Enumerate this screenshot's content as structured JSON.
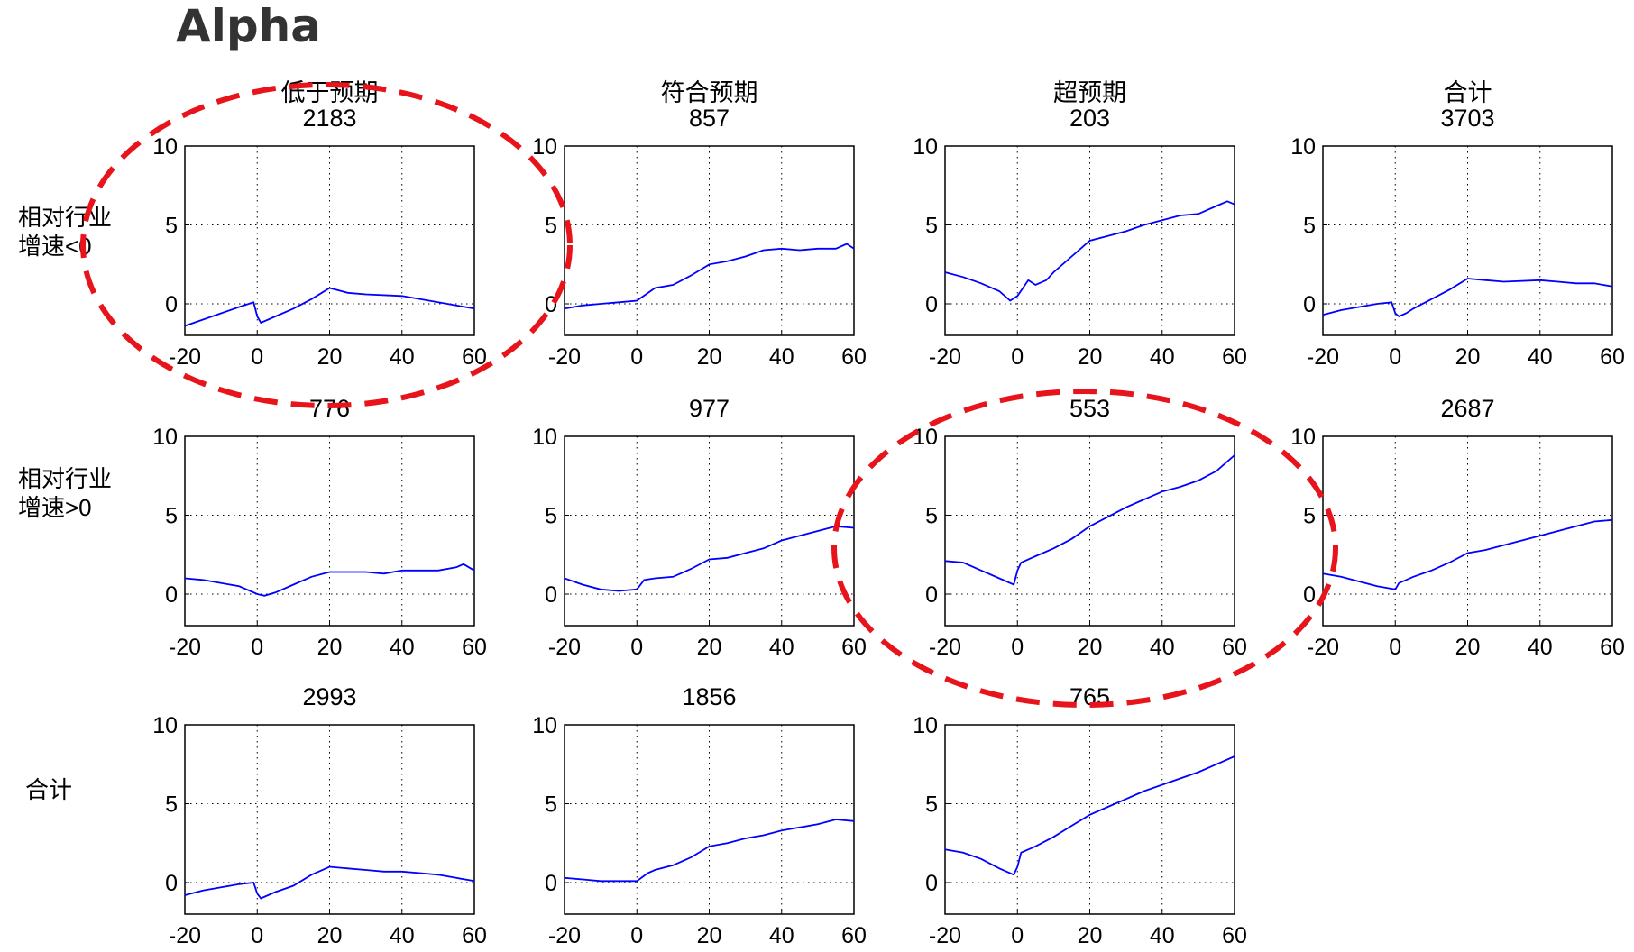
{
  "page_title": "Alpha",
  "row_labels": [
    [
      "相对行业",
      "增速<0"
    ],
    [
      "相对行业",
      "增速>0"
    ],
    [
      "合计"
    ]
  ],
  "colors": {
    "line": "#0000ff",
    "highlight": "#e8141c",
    "axis": "#000000",
    "grid": "#000000"
  },
  "chart_data": [
    {
      "type": "line",
      "title": "低于预期",
      "count": "2183",
      "xlim": [
        -20,
        60
      ],
      "ylim": [
        -2,
        10
      ],
      "xticks": [
        -20,
        0,
        20,
        40,
        60
      ],
      "yticks": [
        0,
        5,
        10
      ],
      "grid": true,
      "series": [
        {
          "x": [
            -20,
            -15,
            -10,
            -5,
            -1,
            0,
            1,
            3,
            5,
            10,
            15,
            20,
            25,
            30,
            40,
            45,
            50,
            55,
            60
          ],
          "y": [
            -1.4,
            -1.0,
            -0.6,
            -0.2,
            0.1,
            -0.8,
            -1.2,
            -1.0,
            -0.8,
            -0.3,
            0.3,
            1.0,
            0.7,
            0.6,
            0.5,
            0.3,
            0.1,
            -0.1,
            -0.3
          ]
        }
      ]
    },
    {
      "type": "line",
      "title": "符合预期",
      "count": "857",
      "xlim": [
        -20,
        60
      ],
      "ylim": [
        -2,
        10
      ],
      "xticks": [
        -20,
        0,
        20,
        40,
        60
      ],
      "yticks": [
        0,
        5,
        10
      ],
      "grid": true,
      "series": [
        {
          "x": [
            -20,
            -15,
            -10,
            -5,
            0,
            5,
            10,
            15,
            20,
            25,
            30,
            35,
            40,
            45,
            50,
            55,
            58,
            60
          ],
          "y": [
            -0.3,
            -0.1,
            0.0,
            0.1,
            0.2,
            1.0,
            1.2,
            1.8,
            2.5,
            2.7,
            3.0,
            3.4,
            3.5,
            3.4,
            3.5,
            3.5,
            3.8,
            3.5
          ]
        }
      ]
    },
    {
      "type": "line",
      "title": "超预期",
      "count": "203",
      "xlim": [
        -20,
        60
      ],
      "ylim": [
        -2,
        10
      ],
      "xticks": [
        -20,
        0,
        20,
        40,
        60
      ],
      "yticks": [
        0,
        5,
        10
      ],
      "grid": true,
      "series": [
        {
          "x": [
            -20,
            -15,
            -10,
            -5,
            -2,
            0,
            3,
            5,
            8,
            10,
            15,
            20,
            25,
            30,
            35,
            40,
            45,
            50,
            55,
            58,
            60
          ],
          "y": [
            2.0,
            1.7,
            1.3,
            0.8,
            0.2,
            0.5,
            1.5,
            1.2,
            1.5,
            2.0,
            3.0,
            4.0,
            4.3,
            4.6,
            5.0,
            5.3,
            5.6,
            5.7,
            6.2,
            6.5,
            6.3
          ]
        }
      ]
    },
    {
      "type": "line",
      "title": "合计",
      "count": "3703",
      "xlim": [
        -20,
        60
      ],
      "ylim": [
        -2,
        10
      ],
      "xticks": [
        -20,
        0,
        20,
        40,
        60
      ],
      "yticks": [
        0,
        5,
        10
      ],
      "grid": true,
      "series": [
        {
          "x": [
            -20,
            -15,
            -10,
            -5,
            -1,
            0,
            1,
            3,
            5,
            10,
            15,
            20,
            25,
            30,
            40,
            45,
            50,
            55,
            60
          ],
          "y": [
            -0.7,
            -0.4,
            -0.2,
            0.0,
            0.1,
            -0.6,
            -0.8,
            -0.6,
            -0.3,
            0.3,
            0.9,
            1.6,
            1.5,
            1.4,
            1.5,
            1.4,
            1.3,
            1.3,
            1.1
          ]
        }
      ]
    },
    {
      "type": "line",
      "title": "",
      "count": "776",
      "xlim": [
        -20,
        60
      ],
      "ylim": [
        -2,
        10
      ],
      "xticks": [
        -20,
        0,
        20,
        40,
        60
      ],
      "yticks": [
        0,
        5,
        10
      ],
      "grid": true,
      "series": [
        {
          "x": [
            -20,
            -15,
            -10,
            -5,
            0,
            2,
            5,
            10,
            15,
            20,
            25,
            30,
            35,
            40,
            45,
            50,
            55,
            57,
            60
          ],
          "y": [
            1.0,
            0.9,
            0.7,
            0.5,
            0.0,
            -0.1,
            0.1,
            0.6,
            1.1,
            1.4,
            1.4,
            1.4,
            1.3,
            1.5,
            1.5,
            1.5,
            1.7,
            1.9,
            1.5
          ]
        }
      ]
    },
    {
      "type": "line",
      "title": "",
      "count": "977",
      "xlim": [
        -20,
        60
      ],
      "ylim": [
        -2,
        10
      ],
      "xticks": [
        -20,
        0,
        20,
        40,
        60
      ],
      "yticks": [
        0,
        5,
        10
      ],
      "grid": true,
      "series": [
        {
          "x": [
            -20,
            -15,
            -10,
            -5,
            0,
            2,
            5,
            10,
            15,
            20,
            25,
            30,
            35,
            40,
            45,
            50,
            55,
            60
          ],
          "y": [
            1.0,
            0.6,
            0.3,
            0.2,
            0.3,
            0.9,
            1.0,
            1.1,
            1.6,
            2.2,
            2.3,
            2.6,
            2.9,
            3.4,
            3.7,
            4.0,
            4.3,
            4.2
          ]
        }
      ]
    },
    {
      "type": "line",
      "title": "",
      "count": "553",
      "xlim": [
        -20,
        60
      ],
      "ylim": [
        -2,
        10
      ],
      "xticks": [
        -20,
        0,
        20,
        40,
        60
      ],
      "yticks": [
        0,
        5,
        10
      ],
      "grid": true,
      "series": [
        {
          "x": [
            -20,
            -15,
            -10,
            -5,
            -1,
            0,
            1,
            5,
            10,
            15,
            20,
            25,
            30,
            35,
            40,
            45,
            50,
            55,
            60
          ],
          "y": [
            2.1,
            2.0,
            1.5,
            1.0,
            0.6,
            1.5,
            2.0,
            2.4,
            2.9,
            3.5,
            4.3,
            4.9,
            5.5,
            6.0,
            6.5,
            6.8,
            7.2,
            7.8,
            8.8
          ]
        }
      ]
    },
    {
      "type": "line",
      "title": "",
      "count": "2687",
      "xlim": [
        -20,
        60
      ],
      "ylim": [
        -2,
        10
      ],
      "xticks": [
        -20,
        0,
        20,
        40,
        60
      ],
      "yticks": [
        0,
        5,
        10
      ],
      "grid": true,
      "series": [
        {
          "x": [
            -20,
            -15,
            -10,
            -5,
            0,
            1,
            5,
            10,
            15,
            20,
            25,
            30,
            35,
            40,
            45,
            50,
            55,
            60
          ],
          "y": [
            1.3,
            1.1,
            0.8,
            0.5,
            0.3,
            0.7,
            1.1,
            1.5,
            2.0,
            2.6,
            2.8,
            3.1,
            3.4,
            3.7,
            4.0,
            4.3,
            4.6,
            4.7
          ]
        }
      ]
    },
    {
      "type": "line",
      "title": "",
      "count": "2993",
      "xlim": [
        -20,
        60
      ],
      "ylim": [
        -2,
        10
      ],
      "xticks": [
        -20,
        0,
        20,
        40,
        60
      ],
      "yticks": [
        0,
        5,
        10
      ],
      "grid": true,
      "series": [
        {
          "x": [
            -20,
            -15,
            -10,
            -5,
            -1,
            0,
            1,
            3,
            5,
            10,
            15,
            20,
            25,
            30,
            35,
            40,
            45,
            50,
            55,
            60
          ],
          "y": [
            -0.8,
            -0.5,
            -0.3,
            -0.1,
            0.0,
            -0.7,
            -1.0,
            -0.8,
            -0.6,
            -0.2,
            0.5,
            1.0,
            0.9,
            0.8,
            0.7,
            0.7,
            0.6,
            0.5,
            0.3,
            0.1
          ]
        }
      ]
    },
    {
      "type": "line",
      "title": "",
      "count": "1856",
      "xlim": [
        -20,
        60
      ],
      "ylim": [
        -2,
        10
      ],
      "xticks": [
        -20,
        0,
        20,
        40,
        60
      ],
      "yticks": [
        0,
        5,
        10
      ],
      "grid": true,
      "series": [
        {
          "x": [
            -20,
            -15,
            -10,
            -5,
            0,
            3,
            5,
            10,
            15,
            20,
            25,
            30,
            35,
            40,
            45,
            50,
            55,
            60
          ],
          "y": [
            0.3,
            0.2,
            0.1,
            0.1,
            0.1,
            0.6,
            0.8,
            1.1,
            1.6,
            2.3,
            2.5,
            2.8,
            3.0,
            3.3,
            3.5,
            3.7,
            4.0,
            3.9
          ]
        }
      ]
    },
    {
      "type": "line",
      "title": "",
      "count": "765",
      "xlim": [
        -20,
        60
      ],
      "ylim": [
        -2,
        10
      ],
      "xticks": [
        -20,
        0,
        20,
        40,
        60
      ],
      "yticks": [
        0,
        5,
        10
      ],
      "grid": true,
      "series": [
        {
          "x": [
            -20,
            -15,
            -10,
            -5,
            -1,
            0,
            1,
            5,
            10,
            15,
            20,
            25,
            30,
            35,
            40,
            45,
            50,
            55,
            60
          ],
          "y": [
            2.1,
            1.9,
            1.5,
            0.9,
            0.5,
            1.0,
            1.9,
            2.3,
            2.9,
            3.6,
            4.3,
            4.8,
            5.3,
            5.8,
            6.2,
            6.6,
            7.0,
            7.5,
            8.0
          ]
        }
      ]
    }
  ]
}
